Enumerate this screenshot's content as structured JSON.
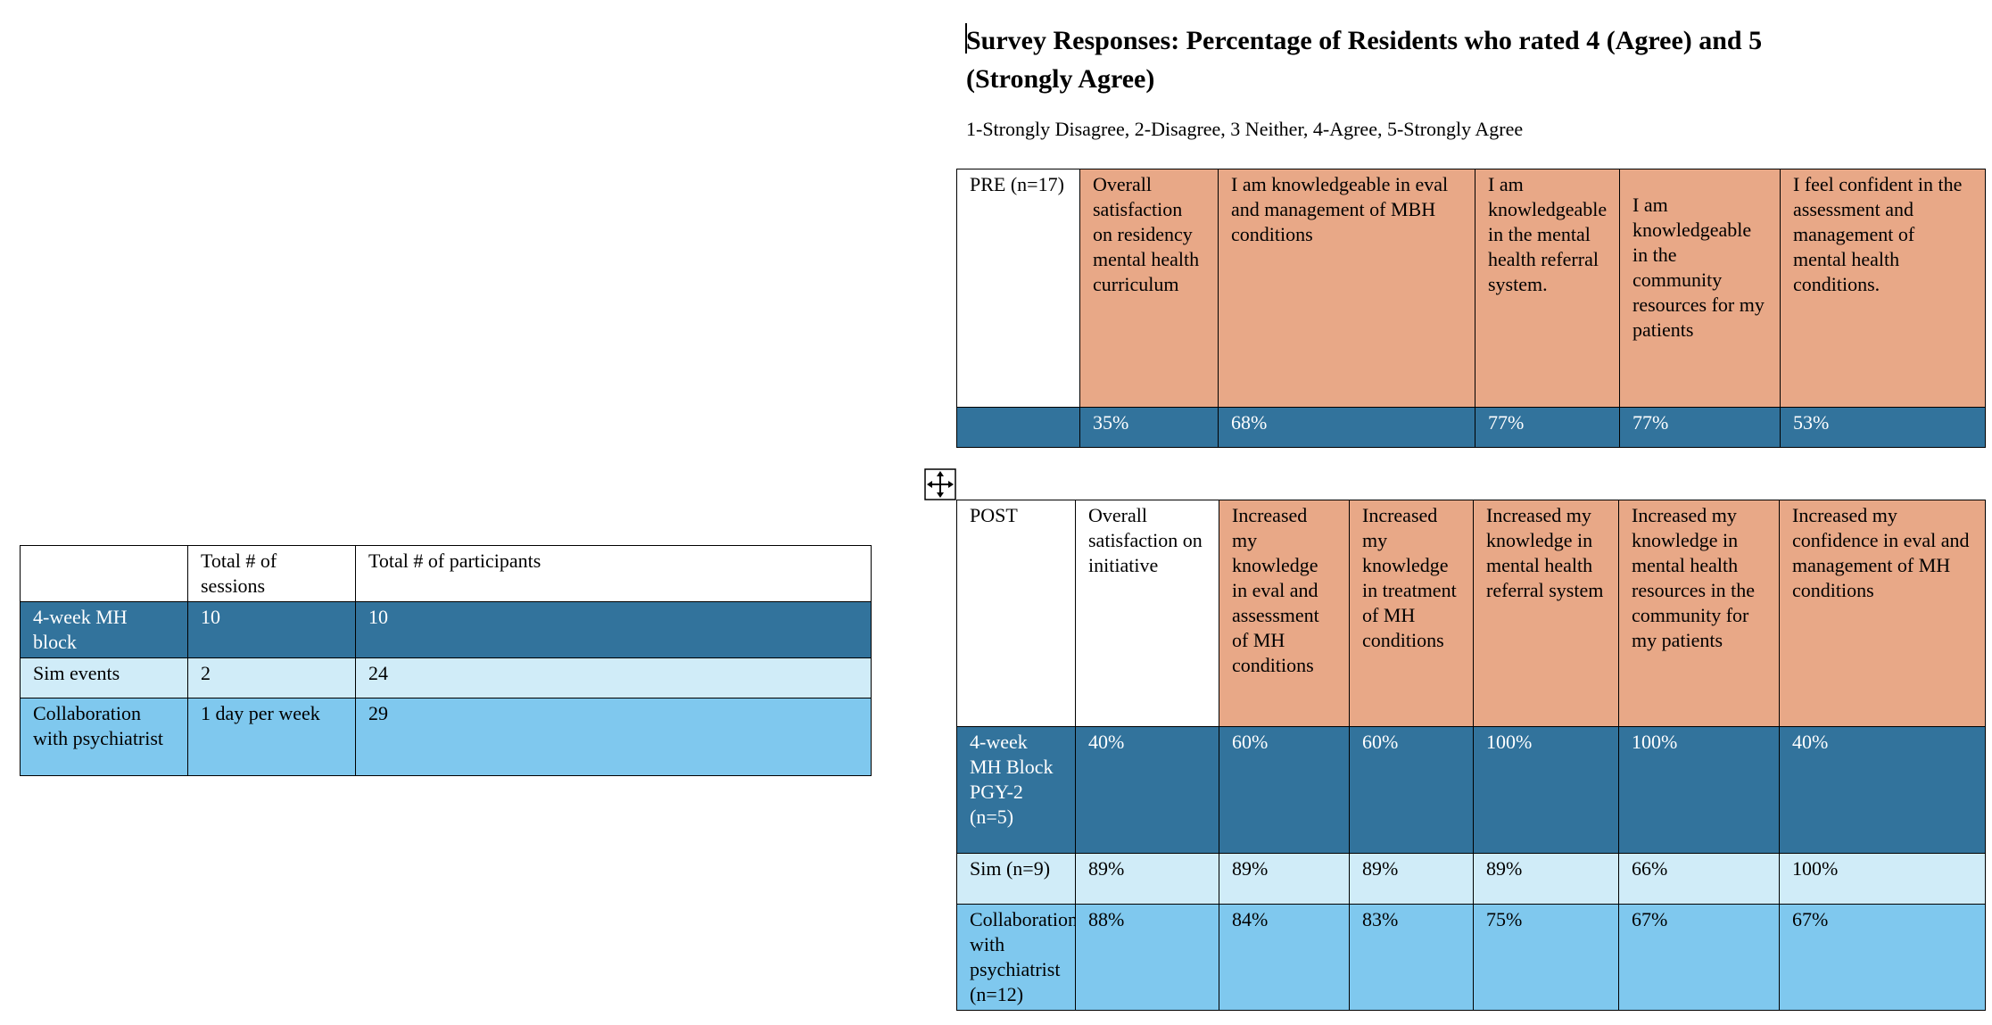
{
  "summary_table": {
    "headers": [
      "",
      "Total # of sessions",
      "Total # of participants"
    ],
    "rows": [
      [
        "4-week MH block",
        "10",
        "10"
      ],
      [
        "Sim events",
        "2",
        "24"
      ],
      [
        "Collaboration with psychiatrist",
        "1 day per week",
        "29"
      ]
    ]
  },
  "survey": {
    "title": "Survey Responses: Percentage of Residents who rated 4 (Agree) and 5 (Strongly Agree)",
    "scale_note": "1-Strongly Disagree, 2-Disagree, 3 Neither, 4-Agree, 5-Strongly Agree",
    "pre": {
      "headers": [
        "PRE (n=17)",
        "Overall satisfaction on residency mental health curriculum",
        "I am knowledgeable in eval and management of MBH conditions",
        "I am knowledgeable in the mental health referral system.",
        "I am knowledgeable in the community resources for my patients",
        "I feel confident in the assessment and management of mental health conditions."
      ],
      "values": [
        "",
        "35%",
        "68%",
        "77%",
        "77%",
        "53%"
      ]
    },
    "post": {
      "headers": [
        "POST",
        "Overall satisfaction on initiative",
        "Increased my knowledge in eval and assessment of MH conditions",
        "Increased my knowledge in treatment of MH conditions",
        "Increased my knowledge in mental health referral system",
        "Increased my knowledge in mental health resources in the community for my patients",
        "Increased my confidence in eval and management of MH conditions"
      ],
      "rows": [
        [
          "4-week MH Block PGY-2 (n=5)",
          "40%",
          "60%",
          "60%",
          "100%",
          "100%",
          "40%"
        ],
        [
          "Sim (n=9)",
          "89%",
          "89%",
          "89%",
          "89%",
          "66%",
          "100%"
        ],
        [
          "Collaboration with psychiatrist (n=12)",
          "88%",
          "84%",
          "83%",
          "75%",
          "67%",
          "67%"
        ]
      ]
    }
  }
}
